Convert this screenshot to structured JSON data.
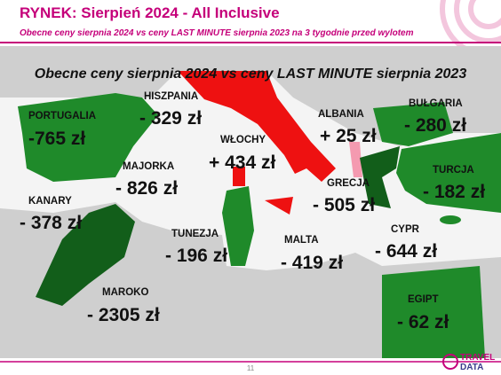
{
  "header": {
    "title": "RYNEK: Sierpień 2024 - All Inclusive",
    "subtitle": "Obecne ceny sierpnia 2024 vs ceny LAST MINUTE sierpnia 2023 na 3 tygodnie przed wylotem"
  },
  "map": {
    "title": "Obecne ceny sierpnia 2024 vs ceny LAST MINUTE sierpnia 2023",
    "regions": [
      {
        "name": "PORTUGALIA",
        "price": "-765 zł"
      },
      {
        "name": "HISZPANIA",
        "price": "- 329 zł"
      },
      {
        "name": "WŁOCHY",
        "price": "+ 434 zł"
      },
      {
        "name": "ALBANIA",
        "price": "+ 25 zł"
      },
      {
        "name": "BUŁGARIA",
        "price": "- 280 zł"
      },
      {
        "name": "MAJORKA",
        "price": "- 826 zł"
      },
      {
        "name": "TURCJA",
        "price": "- 182 zł"
      },
      {
        "name": "GRECJA",
        "price": "- 505 zł"
      },
      {
        "name": "KANARY",
        "price": "- 378 zł"
      },
      {
        "name": "TUNEZJA",
        "price": "- 196 zł"
      },
      {
        "name": "MALTA",
        "price": "- 419 zł"
      },
      {
        "name": "CYPR",
        "price": "- 644 zł"
      },
      {
        "name": "MAROKO",
        "price": "- 2305 zł"
      },
      {
        "name": "EGIPT",
        "price": "- 62 zł"
      }
    ]
  },
  "footer": {
    "page_number": "11",
    "logo_top": "TRAVEL",
    "logo_bottom": "DATA"
  }
}
